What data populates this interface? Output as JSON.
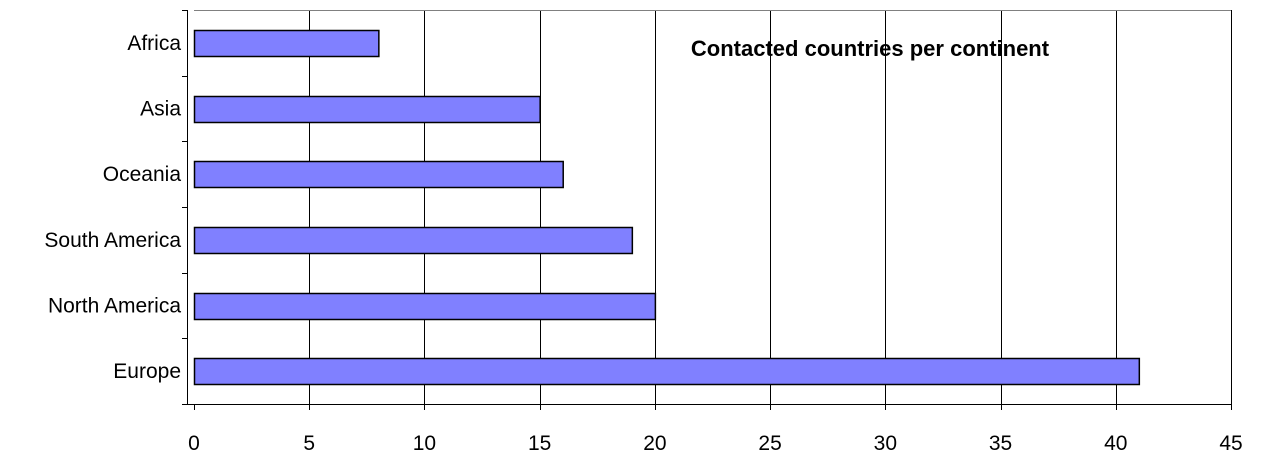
{
  "chart_data": {
    "type": "bar",
    "orientation": "horizontal",
    "title": "Contacted countries per continent",
    "categories": [
      "Europe",
      "North America",
      "South America",
      "Oceania",
      "Asia",
      "Africa"
    ],
    "values": [
      41,
      20,
      19,
      16,
      15,
      8
    ],
    "xlabel": "",
    "ylabel": "",
    "xlim": [
      0,
      45
    ],
    "xticks": [
      0,
      5,
      10,
      15,
      20,
      25,
      30,
      35,
      40,
      45
    ],
    "grid": "vertical",
    "legend": "none",
    "bar_color": "#8080FF",
    "bar_edge_color": "#000000"
  }
}
